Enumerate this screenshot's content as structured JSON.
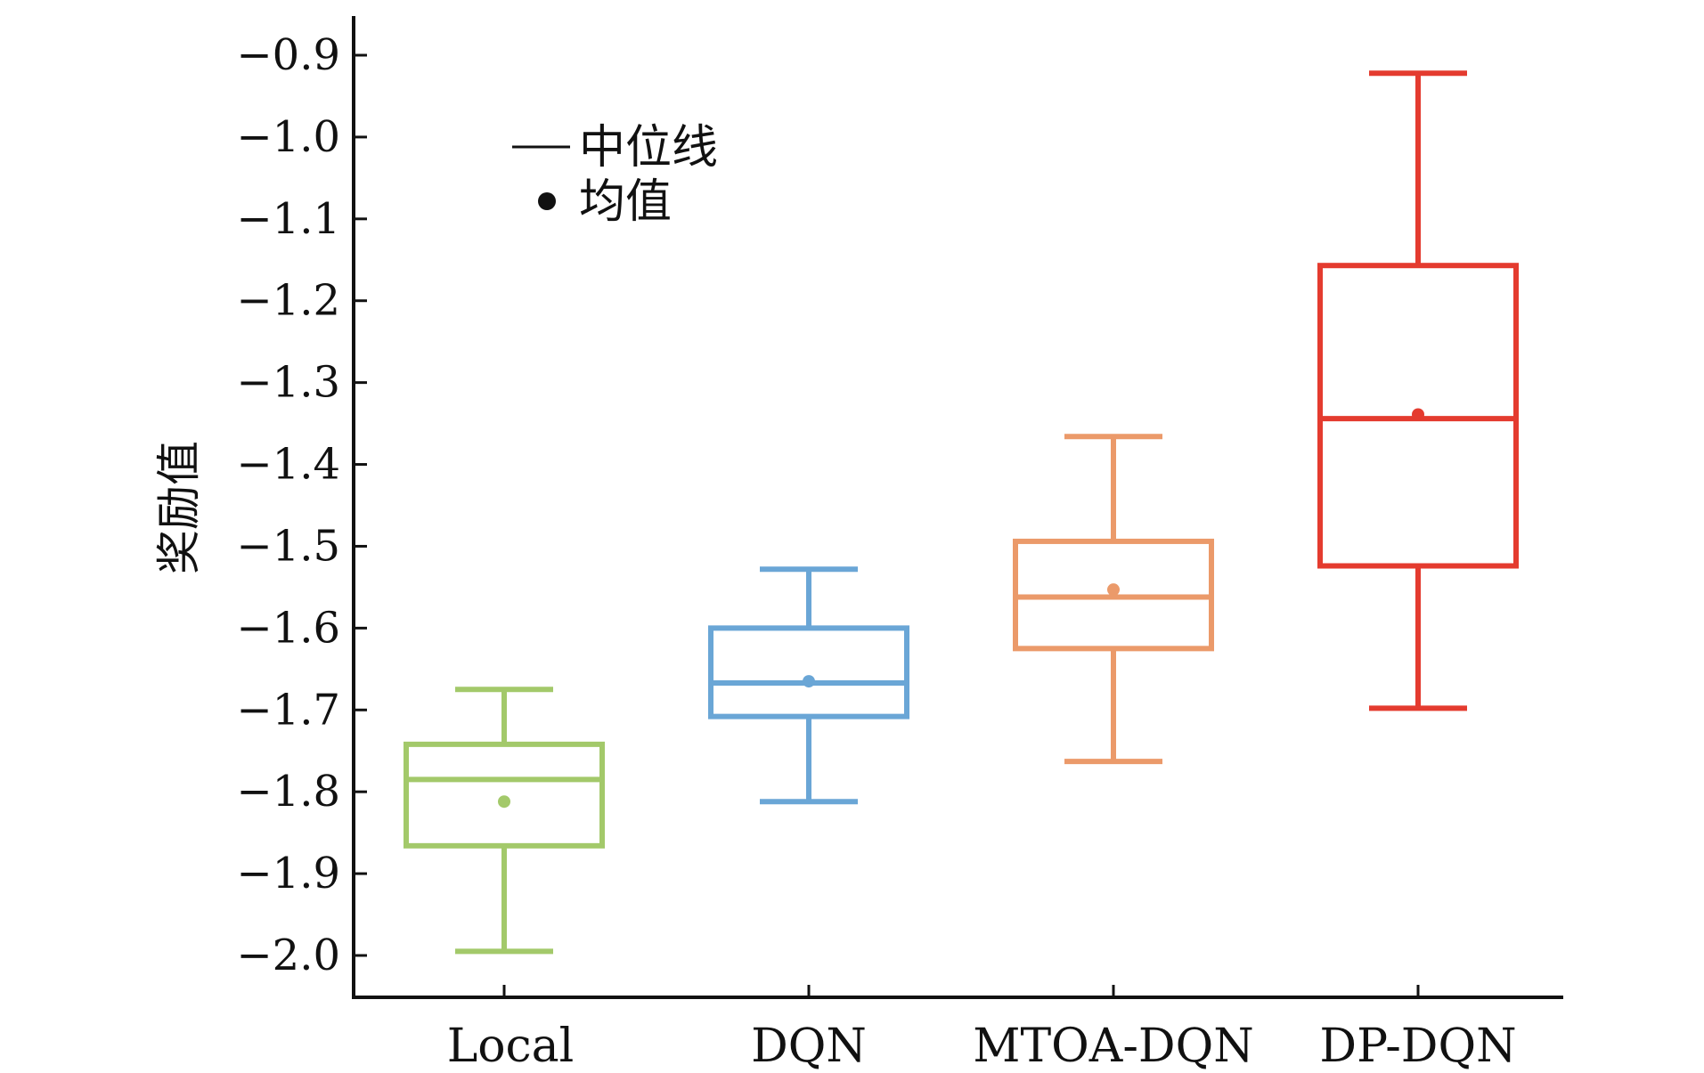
{
  "chart_data": {
    "type": "box",
    "title": "",
    "xlabel": "",
    "ylabel": "奖励值",
    "ylim": [
      -2.05,
      -0.85
    ],
    "yticks": [
      -0.9,
      -1.0,
      -1.1,
      -1.2,
      -1.3,
      -1.4,
      -1.5,
      -1.6,
      -1.7,
      -1.8,
      -1.9,
      -2.0
    ],
    "ytick_labels": [
      "−0.9",
      "−1.0",
      "−1.1",
      "−1.2",
      "−1.3",
      "−1.4",
      "−1.5",
      "−1.6",
      "−1.7",
      "−1.8",
      "−1.9",
      "−2.0"
    ],
    "categories": [
      "Local",
      "DQN",
      "MTOA-DQN",
      "DP-DQN"
    ],
    "series": [
      {
        "category": "Local",
        "whisker_high": -1.675,
        "q3": -1.742,
        "median": -1.785,
        "q1": -1.866,
        "whisker_low": -1.995,
        "mean": -1.812,
        "color": "#a3c96a"
      },
      {
        "category": "DQN",
        "whisker_high": -1.528,
        "q3": -1.6,
        "median": -1.667,
        "q1": -1.708,
        "whisker_low": -1.812,
        "mean": -1.665,
        "color": "#6aa6d6"
      },
      {
        "category": "MTOA-DQN",
        "whisker_high": -1.366,
        "q3": -1.494,
        "median": -1.562,
        "q1": -1.625,
        "whisker_low": -1.763,
        "mean": -1.553,
        "color": "#eb9a6a"
      },
      {
        "category": "DP-DQN",
        "whisker_high": -0.922,
        "q3": -1.157,
        "median": -1.344,
        "q1": -1.524,
        "whisker_low": -1.698,
        "mean": -1.339,
        "color": "#e43b2f"
      }
    ],
    "legend": {
      "median_label": "中位线",
      "mean_label": "均值",
      "placement": "top-left"
    },
    "grid": false
  }
}
